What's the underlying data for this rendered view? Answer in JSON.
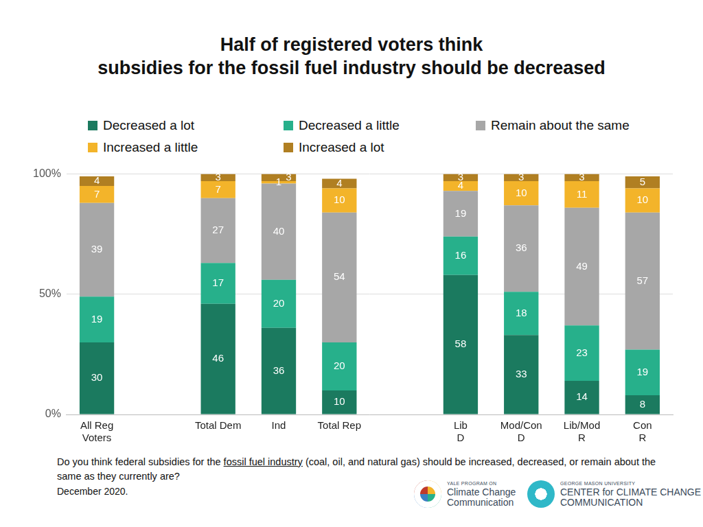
{
  "chart_data": {
    "type": "bar",
    "title": "Half of registered voters think\nsubsidies for the fossil fuel industry should be decreased",
    "categories": [
      "All Reg\nVoters",
      null,
      "Total Dem",
      "Ind",
      "Total Rep",
      null,
      "Lib\nD",
      "Mod/Con\nD",
      "Lib/Mod\nR",
      "Con\nR"
    ],
    "series": [
      {
        "name": "Decreased a lot",
        "color": "#1b7a5f",
        "values": [
          30,
          null,
          46,
          36,
          10,
          null,
          58,
          33,
          14,
          8
        ]
      },
      {
        "name": "Decreased a little",
        "color": "#27b08b",
        "values": [
          19,
          null,
          17,
          20,
          20,
          null,
          16,
          18,
          23,
          19
        ]
      },
      {
        "name": "Remain about the same",
        "color": "#a7a7a7",
        "values": [
          39,
          null,
          27,
          40,
          54,
          null,
          19,
          36,
          49,
          57
        ]
      },
      {
        "name": "Increased a little",
        "color": "#f3b42a",
        "values": [
          7,
          null,
          7,
          1,
          10,
          null,
          4,
          10,
          11,
          10
        ]
      },
      {
        "name": "Increased a lot",
        "color": "#b07f22",
        "values": [
          4,
          null,
          3,
          3,
          4,
          null,
          3,
          3,
          3,
          5
        ]
      }
    ],
    "ylim": [
      0,
      100
    ],
    "yticks": [
      {
        "value": 0,
        "label": "0%"
      },
      {
        "value": 50,
        "label": "50%"
      },
      {
        "value": 100,
        "label": "100%"
      }
    ],
    "stacked": true,
    "grid": true,
    "legend": "top",
    "data_labels": true,
    "annotations": {
      "question": [
        "Do you think federal subsidies for the ",
        "fossil fuel industry",
        " (coal, oil, and natural gas) should be increased, decreased, or remain about the same as they currently are?"
      ],
      "date": "December 2020.",
      "logos": [
        [
          "YALE PROGRAM ON",
          "Climate Change",
          "Communication"
        ],
        [
          "GEORGE MASON UNIVERSITY",
          "CENTER for CLIMATE CHANGE",
          "COMMUNICATION"
        ]
      ]
    }
  }
}
